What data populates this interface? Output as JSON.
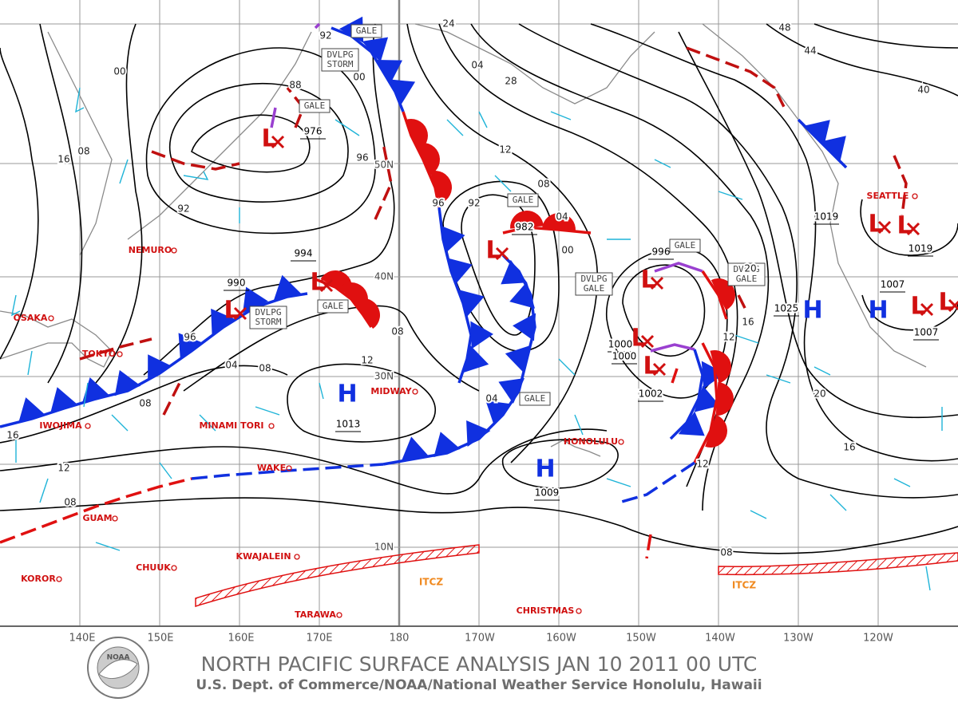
{
  "header": {
    "title": "NORTH PACIFIC SURFACE ANALYSIS JAN 10 2011 00 UTC",
    "subtitle": "U.S. Dept. of Commerce/NOAA/National Weather Service Honolulu, Hawaii",
    "logo": "NOAA"
  },
  "longitudes": [
    "140E",
    "150E",
    "160E",
    "170E",
    "180",
    "170W",
    "160W",
    "150W",
    "140W",
    "130W",
    "120W"
  ],
  "latitudes": [
    "50N",
    "40N",
    "30N",
    "10N"
  ],
  "places": [
    "OSAKA",
    "TOKYO",
    "NEMURO",
    "IWOJIMA",
    "MINAMI TORI",
    "GUAM",
    "KOROR",
    "CHUUK",
    "KWAJALEIN",
    "TARAWA",
    "WAKE",
    "MIDWAY",
    "HONOLULU",
    "CHRISTMAS",
    "SEATTLE"
  ],
  "systems": [
    "L",
    "L",
    "L",
    "L",
    "L",
    "L",
    "L",
    "L",
    "L",
    "L",
    "L",
    "H",
    "H",
    "H",
    "H"
  ],
  "pressures": [
    "976",
    "982",
    "994",
    "990",
    "996",
    "1000",
    "1000",
    "1002",
    "1019",
    "1019",
    "1007",
    "1007",
    "1013",
    "1009",
    "1025"
  ],
  "warnings": [
    "GALE",
    "GALE",
    "GALE",
    "GALE",
    "GALE",
    "GALE",
    "DVLPG STORM",
    "DVLPG STORM",
    "DVLPG GALE",
    "DVLPG GALE"
  ],
  "itcz": [
    "ITCZ",
    "ITCZ"
  ],
  "isobar_labels": [
    "24",
    "28",
    "04",
    "00",
    "96",
    "92",
    "88",
    "00",
    "16",
    "08",
    "92",
    "96",
    "04",
    "08",
    "12",
    "08",
    "08",
    "12",
    "16",
    "04",
    "08",
    "96",
    "92",
    "00",
    "04",
    "08",
    "12",
    "16",
    "20",
    "40",
    "44",
    "48",
    "08",
    "12",
    "16",
    "20",
    "12"
  ]
}
